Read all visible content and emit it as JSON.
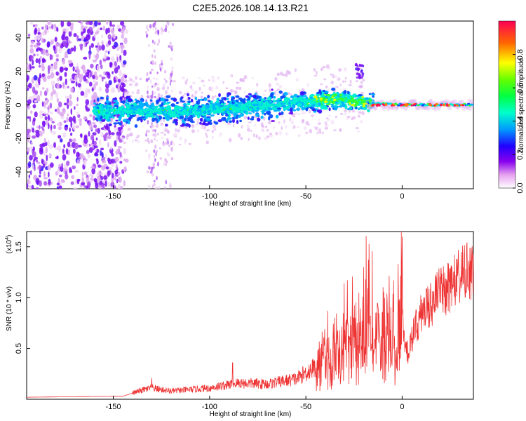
{
  "title": "C2E5.2026.108.14.13.R21",
  "chart_data": [
    {
      "type": "heatmap",
      "xlabel": "Height of straight line (km)",
      "ylabel": "Frequency (Hz)",
      "xlim": [
        -195,
        37
      ],
      "ylim": [
        -50,
        50
      ],
      "xticks": [
        -150,
        -100,
        -50,
        0
      ],
      "yticks": [
        -40,
        -20,
        0,
        20,
        40
      ],
      "colorbar": {
        "label": "Normalized spectral amplitude",
        "ticks": [
          "0.0",
          "0.2",
          "0.4",
          "0.6",
          "0.8"
        ],
        "tick_values": [
          0,
          0.2,
          0.4,
          0.6,
          0.8
        ],
        "range": [
          0,
          1
        ]
      },
      "trace": {
        "points": [
          [
            -160,
            -4
          ],
          [
            -140,
            -3
          ],
          [
            -120,
            -4
          ],
          [
            -100,
            -3
          ],
          [
            -80,
            -1
          ],
          [
            -60,
            1
          ],
          [
            -50,
            2
          ],
          [
            -40,
            3
          ],
          [
            -30,
            3
          ],
          [
            -20,
            2
          ],
          [
            -15,
            1
          ],
          [
            0,
            0
          ],
          [
            35,
            0
          ]
        ]
      }
    },
    {
      "type": "line",
      "xlabel": "Height of straight line (km)",
      "ylabel": "SNR (10 * v/v)",
      "y_multiplier": "(x10",
      "y_multiplier_exp": "4",
      "y_multiplier_close": ")",
      "xlim": [
        -195,
        37
      ],
      "ylim": [
        0,
        1.65
      ],
      "xticks": [
        -150,
        -100,
        -50,
        0
      ],
      "yticks": [
        0.5,
        1.0,
        1.5
      ],
      "ytick_labels": [
        "0.5",
        "1.0",
        "1.5"
      ],
      "color": "#ee3333",
      "envelope": [
        [
          -195,
          0.02
        ],
        [
          -145,
          0.03
        ],
        [
          -135,
          0.09
        ],
        [
          -130,
          0.11
        ],
        [
          -120,
          0.08
        ],
        [
          -100,
          0.11
        ],
        [
          -85,
          0.16
        ],
        [
          -70,
          0.15
        ],
        [
          -55,
          0.2
        ],
        [
          -45,
          0.32
        ],
        [
          -35,
          0.45
        ],
        [
          -25,
          0.6
        ],
        [
          -18,
          0.75
        ],
        [
          -10,
          0.55
        ],
        [
          -2,
          0.62
        ],
        [
          0,
          0.9
        ],
        [
          2,
          0.45
        ],
        [
          10,
          0.85
        ],
        [
          20,
          1.05
        ],
        [
          30,
          1.2
        ],
        [
          37,
          1.27
        ]
      ],
      "spikes": [
        [
          -130,
          0.21
        ],
        [
          -88,
          0.36
        ],
        [
          -20,
          1.3
        ],
        [
          -19,
          1.18
        ],
        [
          0,
          1.6
        ],
        [
          3,
          0.35
        ]
      ]
    }
  ]
}
